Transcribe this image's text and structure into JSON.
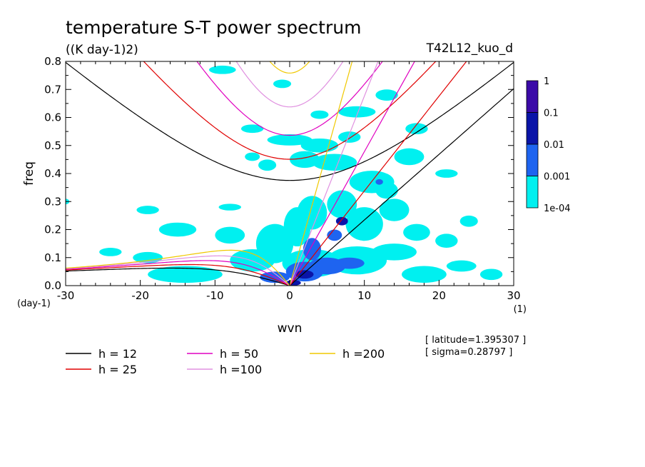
{
  "chart_data": {
    "type": "heatmap",
    "title": "temperature S-T power spectrum",
    "units": "((K day-1)2)",
    "run": "T42L12_kuo_d",
    "xlabel": "wvn",
    "ylabel": "freq",
    "x_unit": "(1)",
    "y_unit": "(day-1)",
    "xlim": [
      -30,
      30
    ],
    "ylim": [
      0,
      0.8
    ],
    "xticks": [
      -30,
      -20,
      -10,
      0,
      10,
      20,
      30
    ],
    "yticks": [
      0.0,
      0.1,
      0.2,
      0.3,
      0.4,
      0.5,
      0.6,
      0.7,
      0.8
    ],
    "xtick_labels": [
      "-30",
      "-20",
      "-10",
      "0",
      "10",
      "20",
      "30"
    ],
    "ytick_labels": [
      "0.0",
      "0.1",
      "0.2",
      "0.3",
      "0.4",
      "0.5",
      "0.6",
      "0.7",
      "0.8"
    ],
    "colorbar": {
      "levels": [
        "1",
        "0.1",
        "0.01",
        "0.001",
        "1e-04"
      ],
      "colors": [
        "#3b0aa8",
        "#0a14a8",
        "#1e64f0",
        "#00f0f0"
      ]
    },
    "info": [
      "[ latitude=1.395307 ]",
      "[ sigma=0.28797 ]"
    ],
    "dispersion_curves": [
      {
        "h": 12,
        "label": "h = 12",
        "color": "#000000"
      },
      {
        "h": 25,
        "label": "h = 25",
        "color": "#e00000"
      },
      {
        "h": 50,
        "label": "h = 50",
        "color": "#e000c0"
      },
      {
        "h": 100,
        "label": "h =100",
        "color": "#e090e0"
      },
      {
        "h": 200,
        "label": "h =200",
        "color": "#f0c800"
      }
    ],
    "spectrum_regions": [
      {
        "level": 1,
        "k": -30,
        "f": 0.3,
        "rk": 0.5,
        "rf": 0.01
      },
      {
        "level": 1,
        "k": -19,
        "f": 0.27,
        "rk": 1.5,
        "rf": 0.015
      },
      {
        "level": 1,
        "k": -8,
        "f": 0.28,
        "rk": 1.5,
        "rf": 0.012
      },
      {
        "level": 1,
        "k": -3,
        "f": 0.43,
        "rk": 1.2,
        "rf": 0.02
      },
      {
        "level": 1,
        "k": 2,
        "f": 0.45,
        "rk": 2,
        "rf": 0.03
      },
      {
        "level": 1,
        "k": 6,
        "f": 0.44,
        "rk": 3,
        "rf": 0.03
      },
      {
        "level": 1,
        "k": 4,
        "f": 0.5,
        "rk": 2.5,
        "rf": 0.025
      },
      {
        "level": 1,
        "k": 0,
        "f": 0.52,
        "rk": 3,
        "rf": 0.02
      },
      {
        "level": 1,
        "k": -5,
        "f": 0.56,
        "rk": 1.5,
        "rf": 0.015
      },
      {
        "level": 1,
        "k": -9,
        "f": 0.77,
        "rk": 1.8,
        "rf": 0.015
      },
      {
        "level": 1,
        "k": -1,
        "f": 0.72,
        "rk": 1.2,
        "rf": 0.015
      },
      {
        "level": 1,
        "k": 4,
        "f": 0.61,
        "rk": 1.2,
        "rf": 0.015
      },
      {
        "level": 1,
        "k": 9,
        "f": 0.62,
        "rk": 2.5,
        "rf": 0.02
      },
      {
        "level": 1,
        "k": 13,
        "f": 0.68,
        "rk": 1.5,
        "rf": 0.02
      },
      {
        "level": 1,
        "k": 17,
        "f": 0.56,
        "rk": 1.5,
        "rf": 0.02
      },
      {
        "level": 1,
        "k": 21,
        "f": 0.4,
        "rk": 1.5,
        "rf": 0.015
      },
      {
        "level": 1,
        "k": 11,
        "f": 0.37,
        "rk": 3,
        "rf": 0.04
      },
      {
        "level": 1,
        "k": -5,
        "f": 0.46,
        "rk": 1,
        "rf": 0.015
      },
      {
        "level": 1,
        "k": -14,
        "f": 0.04,
        "rk": 5,
        "rf": 0.03
      },
      {
        "level": 1,
        "k": -5,
        "f": 0.09,
        "rk": 3,
        "rf": 0.04
      },
      {
        "level": 1,
        "k": -2,
        "f": 0.15,
        "rk": 2.5,
        "rf": 0.07
      },
      {
        "level": 1,
        "k": -8,
        "f": 0.18,
        "rk": 2,
        "rf": 0.03
      },
      {
        "level": 1,
        "k": -15,
        "f": 0.2,
        "rk": 2.5,
        "rf": 0.025
      },
      {
        "level": 1,
        "k": -19,
        "f": 0.1,
        "rk": 2,
        "rf": 0.02
      },
      {
        "level": 1,
        "k": -24,
        "f": 0.12,
        "rk": 1.5,
        "rf": 0.015
      },
      {
        "level": 1,
        "k": 1,
        "f": 0.21,
        "rk": 1.8,
        "rf": 0.07
      },
      {
        "level": 1,
        "k": 3,
        "f": 0.26,
        "rk": 2,
        "rf": 0.06
      },
      {
        "level": 1,
        "k": 7,
        "f": 0.29,
        "rk": 2,
        "rf": 0.05
      },
      {
        "level": 1,
        "k": 10,
        "f": 0.22,
        "rk": 2.5,
        "rf": 0.06
      },
      {
        "level": 1,
        "k": 14,
        "f": 0.27,
        "rk": 2,
        "rf": 0.04
      },
      {
        "level": 1,
        "k": 17,
        "f": 0.19,
        "rk": 1.8,
        "rf": 0.03
      },
      {
        "level": 1,
        "k": 21,
        "f": 0.16,
        "rk": 1.5,
        "rf": 0.025
      },
      {
        "level": 1,
        "k": 24,
        "f": 0.23,
        "rk": 1.2,
        "rf": 0.02
      },
      {
        "level": 1,
        "k": 3,
        "f": 0.08,
        "rk": 4,
        "rf": 0.05
      },
      {
        "level": 1,
        "k": 9,
        "f": 0.09,
        "rk": 4,
        "rf": 0.05
      },
      {
        "level": 1,
        "k": 14,
        "f": 0.12,
        "rk": 3,
        "rf": 0.03
      },
      {
        "level": 1,
        "k": 18,
        "f": 0.04,
        "rk": 3,
        "rf": 0.03
      },
      {
        "level": 1,
        "k": 23,
        "f": 0.07,
        "rk": 2,
        "rf": 0.02
      },
      {
        "level": 1,
        "k": 27,
        "f": 0.04,
        "rk": 1.5,
        "rf": 0.02
      },
      {
        "level": 1,
        "k": 13,
        "f": 0.34,
        "rk": 1.5,
        "rf": 0.03
      },
      {
        "level": 1,
        "k": 16,
        "f": 0.46,
        "rk": 2,
        "rf": 0.03
      },
      {
        "level": 1,
        "k": 8,
        "f": 0.53,
        "rk": 1.5,
        "rf": 0.02
      },
      {
        "level": 2,
        "k": 2,
        "f": 0.05,
        "rk": 2.5,
        "rf": 0.035
      },
      {
        "level": 2,
        "k": 5,
        "f": 0.07,
        "rk": 2.5,
        "rf": 0.03
      },
      {
        "level": 2,
        "k": 8,
        "f": 0.08,
        "rk": 2,
        "rf": 0.02
      },
      {
        "level": 2,
        "k": -2,
        "f": 0.03,
        "rk": 2,
        "rf": 0.02
      },
      {
        "level": 2,
        "k": 3,
        "f": 0.13,
        "rk": 1.2,
        "rf": 0.04
      },
      {
        "level": 2,
        "k": 6,
        "f": 0.18,
        "rk": 1,
        "rf": 0.02
      },
      {
        "level": 2,
        "k": 12,
        "f": 0.37,
        "rk": 0.5,
        "rf": 0.01
      },
      {
        "level": 3,
        "k": 2,
        "f": 0.04,
        "rk": 1.2,
        "rf": 0.015
      },
      {
        "level": 3,
        "k": 7,
        "f": 0.23,
        "rk": 0.8,
        "rf": 0.015
      },
      {
        "level": 3,
        "k": 0.5,
        "f": 0.01,
        "rk": 1,
        "rf": 0.01
      }
    ]
  }
}
